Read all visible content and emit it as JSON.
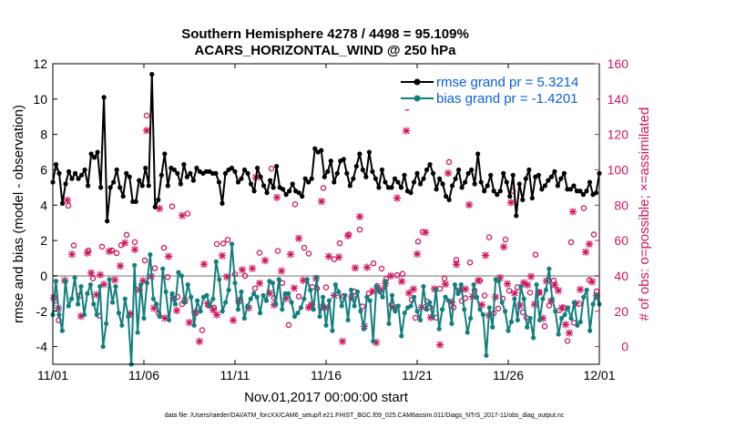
{
  "chart_data": {
    "type": "line",
    "title": "Southern Hemisphere 4278 / 4498 = 95.109%",
    "subtitle": "ACARS_HORIZONTAL_WIND @ 250 hPa",
    "xlabel": "Nov.01,2017 00:00:00 start",
    "ylabel": "rmse and bias (model - observation)",
    "ylabel_right": "# of obs: o=possible; ×=assimilated",
    "footnote": "data file: /Users/raeder/DAI/ATM_forcXX/CAM6_setup/f.e21.FHIST_BGC.f09_025.CAM6assim.011/Diags_NTrS_2017-11/obs_diag_output.nc",
    "xlim": [
      0,
      30
    ],
    "ylim": [
      -5,
      12
    ],
    "ylim_right": [
      -10,
      160
    ],
    "x_ticks": [
      0,
      5,
      10,
      15,
      20,
      25,
      30
    ],
    "x_tick_labels": [
      "11/01",
      "11/06",
      "11/11",
      "11/16",
      "11/21",
      "11/26",
      "12/01"
    ],
    "y_ticks": [
      -4,
      -2,
      0,
      2,
      4,
      6,
      8,
      10,
      12
    ],
    "y_tick_labels": [
      "-4",
      "-2",
      "0",
      "2",
      "4",
      "6",
      "8",
      "10",
      "12"
    ],
    "y_ticks_right": [
      0,
      20,
      40,
      60,
      80,
      100,
      120,
      140,
      160
    ],
    "y_tick_labels_right": [
      "0",
      "20",
      "40",
      "60",
      "80",
      "100",
      "120",
      "140",
      "160"
    ],
    "zero_line": 0,
    "grid": false,
    "legend_position": "top-right",
    "legend": [
      "rmse grand pr = 5.3214",
      "bias grand pr = -1.4201"
    ],
    "colors": {
      "rmse": "#000000",
      "bias": "#127f7f",
      "obs": "#d0155f",
      "legend_text": "#0a5fe0",
      "zero_line": "#b8b8b8"
    },
    "series": [
      {
        "name": "rmse",
        "values": [
          5.3,
          6.3,
          5.8,
          4.1,
          5.2,
          5.9,
          5.5,
          5.8,
          5.5,
          5.7,
          6.0,
          5.1,
          6.9,
          6.7,
          7.0,
          5.0,
          10.1,
          3.1,
          5.0,
          5.3,
          6.0,
          5.0,
          4.5,
          5.8,
          5.6,
          4.2,
          4.2,
          5.4,
          5.1,
          6.1,
          5.1,
          11.4,
          3.9,
          4.3,
          5.7,
          6.9,
          5.1,
          6.1,
          6.0,
          5.8,
          5.2,
          6.3,
          5.6,
          5.8,
          5.4,
          6.1,
          5.9,
          5.8,
          5.9,
          5.9,
          5.8,
          5.8,
          5.3,
          4.1,
          5.8,
          6.0,
          6.1,
          5.9,
          5.3,
          5.5,
          6.0,
          5.8,
          5.2,
          4.8,
          6.1,
          5.6,
          5.1,
          4.7,
          5.4,
          5.0,
          6.2,
          5.0,
          4.9,
          4.6,
          4.8,
          5.2,
          4.8,
          4.7,
          4.5,
          5.5,
          5.3,
          5.5,
          7.2,
          7.0,
          7.1,
          5.6,
          5.9,
          6.5,
          5.3,
          5.8,
          6.5,
          6.6,
          5.8,
          5.1,
          5.5,
          6.2,
          6.9,
          6.0,
          5.6,
          7.0,
          5.9,
          5.5,
          5.0,
          6.0,
          5.3,
          5.0,
          5.0,
          5.5,
          5.3,
          5.0,
          5.7,
          4.8,
          4.7,
          5.3,
          5.8,
          5.2,
          5.5,
          6.0,
          6.3,
          5.8,
          4.9,
          5.5,
          5.2,
          4.5,
          4.3,
          5.1,
          5.5,
          6.0,
          5.0,
          5.3,
          5.8,
          6.0,
          5.2,
          6.9,
          5.3,
          4.8,
          5.1,
          5.7,
          4.8,
          4.6,
          4.8,
          5.8,
          5.3,
          4.5,
          5.7,
          3.4,
          5.2,
          4.3,
          5.5,
          6.0,
          4.4,
          5.6,
          5.7,
          4.9,
          5.1,
          5.4,
          5.6,
          5.9,
          5.1,
          5.5,
          5.8,
          4.9,
          4.9,
          5.1,
          4.8,
          4.8,
          4.6,
          4.8,
          5.3,
          4.6,
          4.7,
          5.8
        ]
      },
      {
        "name": "bias",
        "values": [
          -2.2,
          -0.3,
          -2.2,
          -3.1,
          -0.3,
          -1.7,
          -1.3,
          -0.1,
          -1.6,
          -0.6,
          -2.2,
          -1.0,
          -0.5,
          -1.6,
          -2.2,
          -0.6,
          -4.0,
          -2.7,
          -0.2,
          -1.5,
          -0.6,
          -2.1,
          -2.8,
          -1.3,
          -2.3,
          -5.0,
          0.6,
          -3.2,
          -0.5,
          -2.4,
          -0.4,
          1.2,
          -1.3,
          -1.6,
          -2.3,
          0.4,
          -0.9,
          -2.5,
          -1.0,
          -1.6,
          0.2,
          0.0,
          -1.5,
          -0.5,
          -1.2,
          -2.8,
          -1.4,
          -2.0,
          -1.2,
          -1.1,
          -1.7,
          -1.3,
          0.8,
          -0.2,
          -2.0,
          -1.5,
          -0.8,
          1.8,
          -0.4,
          -1.9,
          -0.9,
          -2.4,
          -1.7,
          -1.3,
          -1.0,
          -1.2,
          -2.1,
          -1.1,
          -1.4,
          -0.3,
          -0.4,
          -1.6,
          -0.2,
          -1.9,
          -1.0,
          -1.0,
          -1.5,
          -2.3,
          -2.1,
          -1.8,
          -1.3,
          -0.2,
          -0.8,
          -1.9,
          -0.1,
          -2.3,
          -1.2,
          -2.8,
          -1.4,
          -3.1,
          -0.5,
          -0.9,
          -1.7,
          -1.1,
          -2.5,
          -0.8,
          -1.7,
          -0.9,
          -2.0,
          -3.0,
          -1.2,
          -1.4,
          -3.7,
          -0.6,
          -0.9,
          -1.2,
          -0.3,
          -2.7,
          -1.1,
          -2.0,
          -1.7,
          -3.4,
          -2.1,
          -1.8,
          -1.7,
          -1.2,
          -2.0,
          -2.5,
          -0.6,
          -1.9,
          -1.5,
          -2.3,
          -0.8,
          -3.0,
          -1.9,
          -1.2,
          -1.4,
          -2.7,
          -0.5,
          -1.0,
          -0.5,
          -1.9,
          -3.2,
          -2.4,
          -0.5,
          -1.2,
          -1.9,
          -2.2,
          -4.5,
          -1.8,
          -2.9,
          -0.2,
          -0.3,
          -1.5,
          -2.0,
          -3.1,
          -2.6,
          -1.3,
          -2.5,
          -0.6,
          -1.3,
          -2.9,
          -2.4,
          -3.5,
          -0.5,
          -2.5,
          -1.3,
          -0.8,
          0.4,
          -1.3,
          -2.0,
          -3.3,
          -2.4,
          -2.2,
          -1.8,
          -2.4,
          -1.5,
          -2.8,
          -2.6,
          -1.2,
          -0.8,
          -3.1,
          -1.6,
          -1.1,
          -1.6
        ]
      }
    ],
    "obs_possible": [
      [
        0.15,
        26.0
      ],
      [
        0.32,
        14.9
      ],
      [
        0.85,
        79.7
      ],
      [
        1.15,
        57.2
      ],
      [
        1.48,
        28.8
      ],
      [
        1.95,
        54.3
      ],
      [
        2.2,
        38.6
      ],
      [
        2.55,
        17.4
      ],
      [
        2.7,
        56.5
      ],
      [
        3.25,
        54.4
      ],
      [
        3.5,
        52.9
      ],
      [
        3.75,
        57.4
      ],
      [
        4.05,
        63.2
      ],
      [
        4.3,
        18.0
      ],
      [
        4.5,
        59.1
      ],
      [
        5.05,
        48.7
      ],
      [
        5.15,
        130.7
      ],
      [
        5.6,
        44.3
      ],
      [
        5.8,
        18.9
      ],
      [
        6.1,
        55.9
      ],
      [
        6.3,
        39.3
      ],
      [
        6.55,
        79.3
      ],
      [
        6.85,
        28.1
      ],
      [
        7.1,
        24.0
      ],
      [
        7.4,
        75.2
      ],
      [
        7.85,
        18.9
      ],
      [
        8.2,
        9.3
      ],
      [
        8.55,
        23.2
      ],
      [
        8.85,
        22.0
      ],
      [
        9.0,
        58.0
      ],
      [
        9.35,
        58.3
      ],
      [
        9.6,
        60.4
      ],
      [
        10.0,
        40.9
      ],
      [
        10.55,
        40.0
      ],
      [
        11.1,
        32.9
      ],
      [
        11.35,
        53.1
      ],
      [
        12.0,
        100.7
      ],
      [
        12.15,
        27.5
      ],
      [
        12.35,
        54.1
      ],
      [
        12.6,
        36.0
      ],
      [
        12.95,
        12.2
      ],
      [
        13.3,
        80.5
      ],
      [
        13.5,
        28.3
      ],
      [
        13.8,
        55.9
      ],
      [
        14.05,
        52.6
      ],
      [
        14.25,
        33.7
      ],
      [
        14.5,
        32.8
      ],
      [
        14.7,
        22.2
      ],
      [
        14.85,
        89.7
      ],
      [
        15.0,
        33.5
      ],
      [
        15.45,
        49.4
      ],
      [
        15.75,
        58.5
      ],
      [
        15.95,
        28.6
      ],
      [
        16.25,
        63.4
      ],
      [
        16.55,
        31.2
      ],
      [
        16.85,
        66.2
      ],
      [
        17.0,
        22.7
      ],
      [
        17.35,
        30.1
      ],
      [
        17.6,
        47.1
      ],
      [
        17.8,
        34.3
      ],
      [
        18.05,
        44.1
      ],
      [
        18.3,
        38.3
      ],
      [
        18.6,
        23.6
      ],
      [
        18.9,
        40.4
      ],
      [
        19.2,
        41.1
      ],
      [
        19.45,
        135.1
      ],
      [
        19.7,
        26.5
      ],
      [
        19.9,
        16.3
      ],
      [
        20.05,
        59.4
      ],
      [
        20.3,
        64.8
      ],
      [
        20.55,
        25.5
      ],
      [
        20.7,
        22.2
      ],
      [
        21.05,
        16.4
      ],
      [
        21.25,
        32.7
      ],
      [
        21.5,
        38.5
      ],
      [
        21.75,
        104.4
      ],
      [
        22.0,
        22.1
      ],
      [
        22.15,
        49.1
      ],
      [
        22.45,
        25.8
      ],
      [
        22.65,
        27.4
      ],
      [
        22.9,
        47.6
      ],
      [
        23.15,
        31.7
      ],
      [
        23.45,
        37.3
      ],
      [
        23.7,
        28.9
      ],
      [
        23.95,
        61.8
      ],
      [
        24.2,
        18.9
      ],
      [
        24.45,
        21.5
      ],
      [
        24.7,
        27.1
      ],
      [
        24.85,
        60.6
      ],
      [
        25.05,
        31.6
      ],
      [
        25.25,
        88.1
      ],
      [
        25.5,
        33.6
      ],
      [
        25.8,
        19.4
      ],
      [
        26.0,
        16.3
      ],
      [
        26.2,
        30.5
      ],
      [
        26.5,
        52.0
      ],
      [
        26.7,
        30.7
      ],
      [
        27.0,
        11.5
      ],
      [
        27.25,
        23.2
      ],
      [
        27.5,
        37.3
      ],
      [
        27.8,
        20.5
      ],
      [
        28.05,
        22.1
      ],
      [
        28.25,
        3.2
      ],
      [
        28.45,
        59.0
      ],
      [
        28.6,
        13.5
      ],
      [
        28.9,
        24.2
      ],
      [
        29.15,
        78.3
      ],
      [
        29.45,
        37.7
      ],
      [
        29.7,
        63.4
      ],
      [
        29.85,
        31.2
      ]
    ],
    "obs_assimilated": [
      [
        0.05,
        27.5
      ],
      [
        0.3,
        21.7
      ],
      [
        0.65,
        37.4
      ],
      [
        0.8,
        82.8
      ],
      [
        1.05,
        52.2
      ],
      [
        1.55,
        17.2
      ],
      [
        1.9,
        52.9
      ],
      [
        2.1,
        41.6
      ],
      [
        2.4,
        29.4
      ],
      [
        2.6,
        40.6
      ],
      [
        2.8,
        35.2
      ],
      [
        3.1,
        53.9
      ],
      [
        3.4,
        37.7
      ],
      [
        3.7,
        45.6
      ],
      [
        3.95,
        58.7
      ],
      [
        4.25,
        18.6
      ],
      [
        4.5,
        54.9
      ],
      [
        4.75,
        32.2
      ],
      [
        4.95,
        37.2
      ],
      [
        5.15,
        122.2
      ],
      [
        5.4,
        39.7
      ],
      [
        5.55,
        21.7
      ],
      [
        5.85,
        78.1
      ],
      [
        6.15,
        16.1
      ],
      [
        6.35,
        51.0
      ],
      [
        6.6,
        27.4
      ],
      [
        6.8,
        20.4
      ],
      [
        7.1,
        74.1
      ],
      [
        7.25,
        25.9
      ],
      [
        7.5,
        13.6
      ],
      [
        7.8,
        19.5
      ],
      [
        8.05,
        2.9
      ],
      [
        8.3,
        46.6
      ],
      [
        8.5,
        24.4
      ],
      [
        8.8,
        20.8
      ],
      [
        9.0,
        18.0
      ],
      [
        9.3,
        51.4
      ],
      [
        9.55,
        39.5
      ],
      [
        9.9,
        14.9
      ],
      [
        10.2,
        25.9
      ],
      [
        10.4,
        43.4
      ],
      [
        10.75,
        21.9
      ],
      [
        10.95,
        44.2
      ],
      [
        11.15,
        95.7
      ],
      [
        11.35,
        35.8
      ],
      [
        11.65,
        48.7
      ],
      [
        11.9,
        30.2
      ],
      [
        12.15,
        23.6
      ],
      [
        12.3,
        84.4
      ],
      [
        12.55,
        42.8
      ],
      [
        12.8,
        27.3
      ],
      [
        13.05,
        52.2
      ],
      [
        13.25,
        33.1
      ],
      [
        13.5,
        61.2
      ],
      [
        13.75,
        37.5
      ],
      [
        14.05,
        22.1
      ],
      [
        14.2,
        23.7
      ],
      [
        14.45,
        38.5
      ],
      [
        14.75,
        82.1
      ],
      [
        14.95,
        22.1
      ],
      [
        15.15,
        51.0
      ],
      [
        15.45,
        28.9
      ],
      [
        15.7,
        50.6
      ],
      [
        15.9,
        2.9
      ],
      [
        16.2,
        62.7
      ],
      [
        16.4,
        28.0
      ],
      [
        16.6,
        44.5
      ],
      [
        16.85,
        73.5
      ],
      [
        17.1,
        11.5
      ],
      [
        17.25,
        44.8
      ],
      [
        17.55,
        31.3
      ],
      [
        17.75,
        2.3
      ],
      [
        18.0,
        32.0
      ],
      [
        18.25,
        35.7
      ],
      [
        18.55,
        40.0
      ],
      [
        18.7,
        22.2
      ],
      [
        18.9,
        84.0
      ],
      [
        19.15,
        36.9
      ],
      [
        19.4,
        122.1
      ],
      [
        19.55,
        30.3
      ],
      [
        19.8,
        32.5
      ],
      [
        20.0,
        52.4
      ],
      [
        20.25,
        22.2
      ],
      [
        20.45,
        64.6
      ],
      [
        20.75,
        16.5
      ],
      [
        20.95,
        32.6
      ],
      [
        21.25,
        1.0
      ],
      [
        21.55,
        35.3
      ],
      [
        21.7,
        98.1
      ],
      [
        21.9,
        25.1
      ],
      [
        22.15,
        46.5
      ],
      [
        22.35,
        31.7
      ],
      [
        22.65,
        32.5
      ],
      [
        22.85,
        80.2
      ],
      [
        23.05,
        28.3
      ],
      [
        23.35,
        37.3
      ],
      [
        23.55,
        23.6
      ],
      [
        23.75,
        51.6
      ],
      [
        23.95,
        17.7
      ],
      [
        24.3,
        28.0
      ],
      [
        24.55,
        38.9
      ],
      [
        24.75,
        56.4
      ],
      [
        24.95,
        35.5
      ],
      [
        25.15,
        81.5
      ],
      [
        25.35,
        30.2
      ],
      [
        25.65,
        23.4
      ],
      [
        25.85,
        36.1
      ],
      [
        26.05,
        34.9
      ],
      [
        26.25,
        39.6
      ],
      [
        26.45,
        23.9
      ],
      [
        26.7,
        30.6
      ],
      [
        26.9,
        16.0
      ],
      [
        27.1,
        37.1
      ],
      [
        27.35,
        25.7
      ],
      [
        27.55,
        34.8
      ],
      [
        27.75,
        31.7
      ],
      [
        27.95,
        21.9
      ],
      [
        28.15,
        12.5
      ],
      [
        28.35,
        7.7
      ],
      [
        28.55,
        76.3
      ],
      [
        28.7,
        24.3
      ],
      [
        28.95,
        32.3
      ],
      [
        29.25,
        53.5
      ],
      [
        29.45,
        58.0
      ],
      [
        29.6,
        36.7
      ],
      [
        29.85,
        28.7
      ]
    ]
  }
}
